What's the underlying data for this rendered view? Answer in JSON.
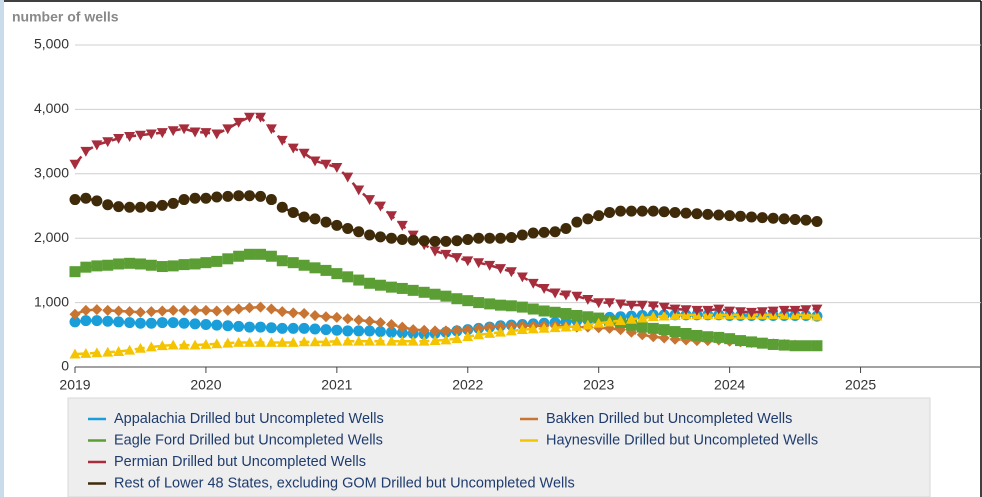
{
  "chart_data": {
    "type": "line",
    "y_label": "number of wells",
    "x": [
      2019,
      2019.083,
      2019.167,
      2019.25,
      2019.333,
      2019.417,
      2019.5,
      2019.583,
      2019.667,
      2019.75,
      2019.833,
      2019.917,
      2020,
      2020.083,
      2020.167,
      2020.25,
      2020.333,
      2020.417,
      2020.5,
      2020.583,
      2020.667,
      2020.75,
      2020.833,
      2020.917,
      2021,
      2021.083,
      2021.167,
      2021.25,
      2021.333,
      2021.417,
      2021.5,
      2021.583,
      2021.667,
      2021.75,
      2021.833,
      2021.917,
      2022,
      2022.083,
      2022.167,
      2022.25,
      2022.333,
      2022.417,
      2022.5,
      2022.583,
      2022.667,
      2022.75,
      2022.833,
      2022.917,
      2023,
      2023.083,
      2023.167,
      2023.25,
      2023.333,
      2023.417,
      2023.5,
      2023.583,
      2023.667,
      2023.75,
      2023.833,
      2023.917,
      2024,
      2024.083,
      2024.167,
      2024.25,
      2024.333,
      2024.417,
      2024.5,
      2024.583,
      2024.667
    ],
    "xlim": [
      2019,
      2025.92
    ],
    "xticks": [
      2019,
      2020,
      2021,
      2022,
      2023,
      2024,
      2025
    ],
    "ylim": [
      0,
      5000
    ],
    "yticks": [
      0,
      {
        "value": 1000,
        "label": "1,000"
      },
      {
        "value": 2000,
        "label": "2,000"
      },
      {
        "value": 3000,
        "label": "3,000"
      },
      {
        "value": 4000,
        "label": "4,000"
      },
      {
        "value": 5000,
        "label": "5,000"
      }
    ],
    "grid": true,
    "series": [
      {
        "name": "Appalachia Drilled but Uncompleted Wells",
        "color": "#1a9ed9",
        "marker": "circle",
        "values": [
          700,
          720,
          720,
          710,
          700,
          690,
          680,
          680,
          690,
          690,
          680,
          670,
          660,
          650,
          640,
          630,
          620,
          620,
          610,
          600,
          600,
          600,
          590,
          580,
          570,
          560,
          560,
          560,
          550,
          540,
          530,
          520,
          510,
          520,
          540,
          560,
          580,
          600,
          620,
          640,
          650,
          660,
          670,
          680,
          690,
          700,
          720,
          730,
          750,
          770,
          780,
          790,
          800,
          810,
          810,
          810,
          810,
          810,
          810,
          810,
          800,
          800,
          800,
          800,
          800,
          800,
          800,
          800,
          790
        ]
      },
      {
        "name": "Bakken Drilled but Uncompleted Wells",
        "color": "#c87432",
        "marker": "diamond",
        "values": [
          820,
          880,
          890,
          880,
          870,
          860,
          850,
          860,
          870,
          880,
          880,
          880,
          880,
          870,
          880,
          900,
          920,
          930,
          900,
          860,
          840,
          830,
          800,
          780,
          770,
          750,
          730,
          710,
          690,
          660,
          620,
          580,
          570,
          560,
          560,
          570,
          580,
          600,
          620,
          630,
          640,
          640,
          640,
          640,
          640,
          630,
          620,
          620,
          610,
          600,
          580,
          540,
          500,
          470,
          450,
          430,
          420,
          410,
          410,
          420,
          400,
          390,
          380,
          370,
          360,
          350,
          340,
          330,
          330
        ]
      },
      {
        "name": "Eagle Ford Drilled but Uncompleted Wells",
        "color": "#5a9e34",
        "marker": "square",
        "values": [
          1480,
          1550,
          1570,
          1580,
          1600,
          1610,
          1600,
          1580,
          1560,
          1570,
          1590,
          1600,
          1620,
          1640,
          1680,
          1720,
          1750,
          1750,
          1720,
          1650,
          1620,
          1580,
          1540,
          1500,
          1450,
          1400,
          1350,
          1300,
          1270,
          1240,
          1220,
          1190,
          1160,
          1130,
          1100,
          1060,
          1030,
          1000,
          980,
          960,
          950,
          930,
          900,
          870,
          850,
          830,
          800,
          780,
          760,
          720,
          690,
          650,
          620,
          600,
          580,
          550,
          520,
          490,
          470,
          460,
          440,
          410,
          390,
          370,
          350,
          340,
          330,
          330,
          330
        ]
      },
      {
        "name": "Haynesville Drilled but Uncompleted Wells",
        "color": "#f5c400",
        "marker": "triangle-up",
        "values": [
          200,
          210,
          220,
          230,
          240,
          260,
          290,
          310,
          330,
          340,
          340,
          340,
          350,
          360,
          370,
          380,
          380,
          380,
          380,
          380,
          380,
          390,
          390,
          390,
          400,
          400,
          400,
          400,
          400,
          400,
          400,
          400,
          400,
          410,
          420,
          440,
          470,
          500,
          520,
          540,
          560,
          580,
          590,
          600,
          610,
          620,
          630,
          650,
          680,
          700,
          720,
          740,
          760,
          780,
          790,
          800,
          810,
          810,
          810,
          810,
          810,
          810,
          810,
          810,
          810,
          810,
          810,
          810,
          790
        ]
      },
      {
        "name": "Permian Drilled but Uncompleted Wells",
        "color": "#a62d3c",
        "marker": "triangle-down",
        "values": [
          3150,
          3350,
          3450,
          3500,
          3550,
          3580,
          3600,
          3620,
          3640,
          3670,
          3700,
          3650,
          3640,
          3620,
          3700,
          3800,
          3880,
          3880,
          3700,
          3520,
          3400,
          3320,
          3200,
          3150,
          3100,
          2950,
          2750,
          2600,
          2500,
          2350,
          2200,
          2050,
          1900,
          1800,
          1750,
          1700,
          1650,
          1620,
          1580,
          1530,
          1480,
          1400,
          1300,
          1220,
          1150,
          1120,
          1100,
          1050,
          1000,
          1000,
          980,
          960,
          960,
          950,
          930,
          900,
          890,
          880,
          880,
          900,
          870,
          860,
          850,
          860,
          870,
          880,
          880,
          890,
          900
        ]
      },
      {
        "name": "Rest of Lower 48 States, excluding GOM Drilled but Uncompleted Wells",
        "color": "#3f2a0a",
        "marker": "circle",
        "values": [
          2600,
          2620,
          2580,
          2520,
          2490,
          2480,
          2480,
          2490,
          2510,
          2540,
          2600,
          2620,
          2620,
          2640,
          2650,
          2660,
          2660,
          2650,
          2600,
          2480,
          2400,
          2330,
          2300,
          2250,
          2200,
          2150,
          2100,
          2050,
          2020,
          2000,
          1980,
          1970,
          1960,
          1950,
          1950,
          1960,
          1980,
          2000,
          2000,
          2000,
          2010,
          2050,
          2080,
          2090,
          2100,
          2150,
          2250,
          2300,
          2350,
          2400,
          2420,
          2420,
          2420,
          2420,
          2410,
          2400,
          2390,
          2380,
          2370,
          2360,
          2350,
          2340,
          2330,
          2320,
          2310,
          2300,
          2290,
          2280,
          2260
        ]
      }
    ]
  }
}
